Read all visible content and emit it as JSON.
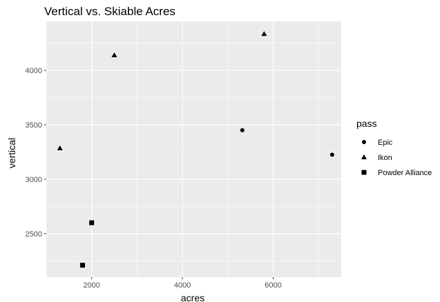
{
  "chart_data": {
    "type": "scatter",
    "title": "Vertical vs. Skiable Acres",
    "xlabel": "acres",
    "ylabel": "vertical",
    "xlim": [
      1000,
      7500
    ],
    "ylim": [
      2100,
      4450
    ],
    "x_ticks": [
      2000,
      4000,
      6000
    ],
    "y_ticks": [
      2500,
      3000,
      3500,
      4000
    ],
    "grid": true,
    "legend": {
      "title": "pass",
      "position": "right",
      "entries": [
        {
          "label": "Epic",
          "shape": "circle"
        },
        {
          "label": "Ikon",
          "shape": "triangle"
        },
        {
          "label": "Powder Alliance",
          "shape": "square"
        }
      ]
    },
    "series": [
      {
        "name": "Epic",
        "shape": "circle",
        "points": [
          {
            "x": 5320,
            "y": 3450
          },
          {
            "x": 7300,
            "y": 3225
          }
        ]
      },
      {
        "name": "Ikon",
        "shape": "triangle",
        "points": [
          {
            "x": 1300,
            "y": 3285
          },
          {
            "x": 2500,
            "y": 4140
          },
          {
            "x": 5800,
            "y": 4335
          }
        ]
      },
      {
        "name": "Powder Alliance",
        "shape": "square",
        "points": [
          {
            "x": 2000,
            "y": 2600
          },
          {
            "x": 1800,
            "y": 2210
          }
        ]
      }
    ],
    "colors": {
      "panel": "#ebebeb",
      "grid_major": "#ffffff",
      "point": "#000000",
      "text": "#000000",
      "tick_text": "#4d4d4d",
      "tick_mark": "#333333"
    }
  }
}
